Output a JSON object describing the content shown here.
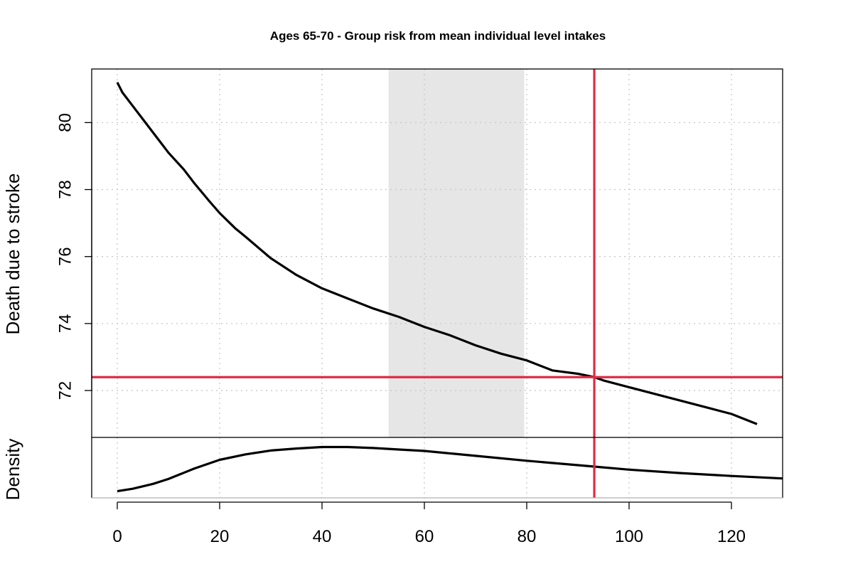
{
  "chart_data": {
    "type": "line",
    "title": "Ages 65-70 - Group risk from mean individual level intakes",
    "xlabel": "",
    "ylabel": "Death due to stroke",
    "density_label": "Density",
    "xlim": [
      -5,
      130
    ],
    "ylim": [
      70.6,
      81.6
    ],
    "x_ticks": [
      "0",
      "20",
      "40",
      "60",
      "80",
      "100",
      "120"
    ],
    "y_ticks": [
      "72",
      "74",
      "76",
      "78",
      "80"
    ],
    "grid": true,
    "shaded_interval": {
      "x_from": 53,
      "x_to": 79.5,
      "color": "#e6e6e6"
    },
    "reference_lines": {
      "vertical_x": 93.2,
      "horizontal_y": 72.4,
      "color": "#df2b45"
    },
    "series": [
      {
        "x": [
          0,
          1,
          3,
          5,
          8,
          10,
          13,
          15,
          18,
          20,
          23,
          25,
          30,
          35,
          40,
          45,
          50,
          55,
          60,
          65,
          70,
          75,
          80,
          85,
          90,
          93.2,
          95,
          100,
          105,
          110,
          115,
          120,
          125
        ],
        "values": [
          81.2,
          80.9,
          80.5,
          80.1,
          79.5,
          79.1,
          78.6,
          78.2,
          77.65,
          77.3,
          76.85,
          76.6,
          75.95,
          75.45,
          75.05,
          74.75,
          74.45,
          74.2,
          73.9,
          73.65,
          73.35,
          73.1,
          72.9,
          72.6,
          72.5,
          72.4,
          72.3,
          72.1,
          71.9,
          71.7,
          71.5,
          71.3,
          71.0
        ],
        "color": "#000000"
      }
    ],
    "density": {
      "x": [
        0,
        3,
        7,
        10,
        15,
        20,
        25,
        30,
        35,
        40,
        45,
        50,
        55,
        60,
        70,
        80,
        90,
        100,
        110,
        120,
        130
      ],
      "values": [
        0.02,
        0.07,
        0.17,
        0.27,
        0.48,
        0.66,
        0.77,
        0.85,
        0.89,
        0.92,
        0.92,
        0.9,
        0.87,
        0.84,
        0.74,
        0.64,
        0.55,
        0.46,
        0.39,
        0.33,
        0.28
      ]
    }
  }
}
